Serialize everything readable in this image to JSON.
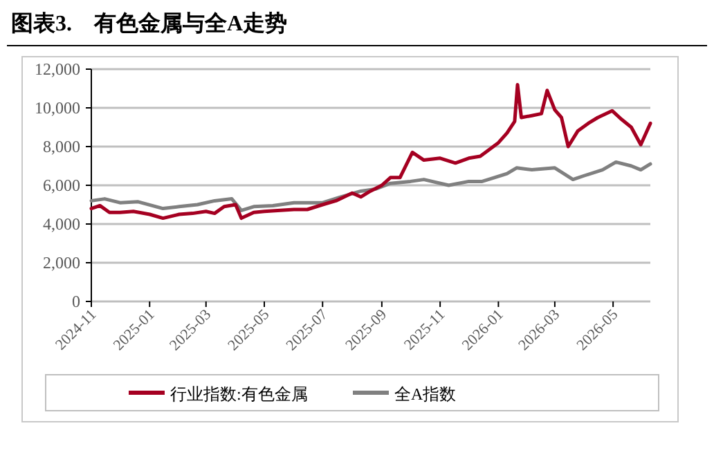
{
  "chart_data": {
    "type": "line",
    "title": "图表3.　有色金属与全A走势",
    "xlim": [
      "2024-11-01",
      "2026-06-09"
    ],
    "xticks": [
      "2024-11",
      "2025-01",
      "2025-03",
      "2025-05",
      "2025-07",
      "2025-09",
      "2025-11",
      "2026-01",
      "2026-03",
      "2026-05"
    ],
    "ylim": [
      0,
      12000
    ],
    "yticks": [
      0,
      {
        "value": 2000,
        "label": "2,000"
      },
      {
        "value": 4000,
        "label": "4,000"
      },
      {
        "value": 6000,
        "label": "6,000"
      },
      {
        "value": 8000,
        "label": "8,000"
      },
      {
        "value": 10000,
        "label": "10,000"
      },
      {
        "value": 12000,
        "label": "12,000"
      }
    ],
    "grid": "y",
    "legend": "bottom",
    "line_style": "solid",
    "marker": "none",
    "series": [
      {
        "name": "行业指数:有色金属",
        "color": "#a50021",
        "x": [
          "2024-11-01",
          "2024-11-10",
          "2024-11-20",
          "2024-12-01",
          "2024-12-15",
          "2025-01-01",
          "2025-01-15",
          "2025-02-01",
          "2025-02-15",
          "2025-03-01",
          "2025-03-10",
          "2025-03-20",
          "2025-04-01",
          "2025-04-07",
          "2025-04-20",
          "2025-05-01",
          "2025-05-15",
          "2025-06-01",
          "2025-06-15",
          "2025-07-01",
          "2025-07-15",
          "2025-08-01",
          "2025-08-10",
          "2025-08-20",
          "2025-09-01",
          "2025-09-10",
          "2025-09-20",
          "2025-10-03",
          "2025-10-15",
          "2025-11-01",
          "2025-11-17",
          "2025-12-01",
          "2025-12-13",
          "2026-01-01",
          "2026-01-10",
          "2026-01-18",
          "2026-01-21",
          "2026-01-25",
          "2026-02-05",
          "2026-02-15",
          "2026-02-21",
          "2026-03-01",
          "2026-03-08",
          "2026-03-15",
          "2026-03-25",
          "2026-04-05",
          "2026-04-15",
          "2026-04-30",
          "2026-05-10",
          "2026-05-20",
          "2026-05-30",
          "2026-06-09"
        ],
        "values": [
          4800,
          4950,
          4600,
          4600,
          4650,
          4500,
          4300,
          4500,
          4550,
          4650,
          4550,
          4900,
          5000,
          4300,
          4600,
          4650,
          4700,
          4750,
          4750,
          5000,
          5200,
          5600,
          5400,
          5700,
          6000,
          6400,
          6400,
          7700,
          7300,
          7400,
          7150,
          7400,
          7500,
          8200,
          8700,
          9300,
          11200,
          9500,
          9600,
          9700,
          10900,
          9900,
          9500,
          8000,
          8800,
          9200,
          9500,
          9850,
          9400,
          9000,
          8100,
          9200
        ]
      },
      {
        "name": "全A指数",
        "color": "#808080",
        "x": [
          "2024-11-01",
          "2024-11-15",
          "2024-12-01",
          "2024-12-20",
          "2025-01-15",
          "2025-02-01",
          "2025-02-20",
          "2025-03-10",
          "2025-03-28",
          "2025-04-07",
          "2025-04-20",
          "2025-05-10",
          "2025-06-01",
          "2025-07-01",
          "2025-07-20",
          "2025-08-10",
          "2025-08-25",
          "2025-09-10",
          "2025-10-01",
          "2025-10-15",
          "2025-11-10",
          "2025-12-01",
          "2025-12-15",
          "2026-01-10",
          "2026-01-20",
          "2026-02-05",
          "2026-03-01",
          "2026-03-20",
          "2026-04-01",
          "2026-04-20",
          "2026-05-04",
          "2026-05-20",
          "2026-05-30",
          "2026-06-09"
        ],
        "values": [
          5200,
          5300,
          5100,
          5150,
          4800,
          4900,
          5000,
          5200,
          5300,
          4700,
          4900,
          4950,
          5100,
          5100,
          5400,
          5700,
          5800,
          6100,
          6200,
          6300,
          6000,
          6200,
          6200,
          6600,
          6900,
          6800,
          6900,
          6300,
          6500,
          6800,
          7200,
          7000,
          6800,
          7100
        ]
      }
    ]
  }
}
